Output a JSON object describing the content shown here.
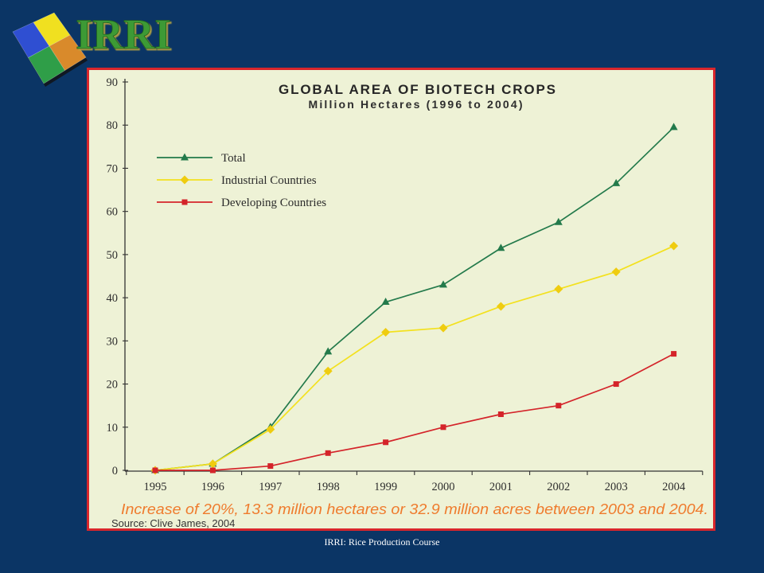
{
  "slide": {
    "logo_text": "IRRI",
    "footer": "IRRI: Rice Production Course",
    "colors": {
      "background": "#0b3565",
      "panel_background": "#eef2d6",
      "panel_border": "#d8262c",
      "logo_text": "#3d9a34",
      "footer_text": "#ffffff",
      "annotation": "#ef7b2d"
    }
  },
  "chart_data": {
    "type": "line",
    "title": "GLOBAL AREA OF BIOTECH CROPS",
    "subtitle": "Million Hectares (1996 to 2004)",
    "x": [
      "1995",
      "1996",
      "1997",
      "1998",
      "1999",
      "2000",
      "2001",
      "2002",
      "2003",
      "2004"
    ],
    "ylim": [
      0,
      90
    ],
    "yticks": [
      0,
      10,
      20,
      30,
      40,
      50,
      60,
      70,
      80,
      90
    ],
    "grid": false,
    "legend_position": "top-left",
    "series": [
      {
        "name": "Total",
        "color": "#237a4b",
        "marker": "triangle",
        "values": [
          0,
          1.5,
          10,
          27.5,
          39,
          43,
          51.5,
          57.5,
          66.5,
          79.5
        ]
      },
      {
        "name": "Industrial Countries",
        "color": "#f3e11e",
        "marker_color": "#efcc10",
        "marker": "diamond",
        "values": [
          0,
          1.5,
          9.5,
          23,
          32,
          33,
          38,
          42,
          46,
          52
        ]
      },
      {
        "name": "Developing Countries",
        "color": "#d4242a",
        "marker": "square",
        "values": [
          0,
          0,
          1,
          4,
          6.5,
          10,
          13,
          15,
          20,
          27
        ]
      }
    ],
    "annotation": "Increase of 20%, 13.3 million hectares or 32.9 million acres between 2003 and 2004.",
    "source": "Source: Clive James, 2004"
  }
}
